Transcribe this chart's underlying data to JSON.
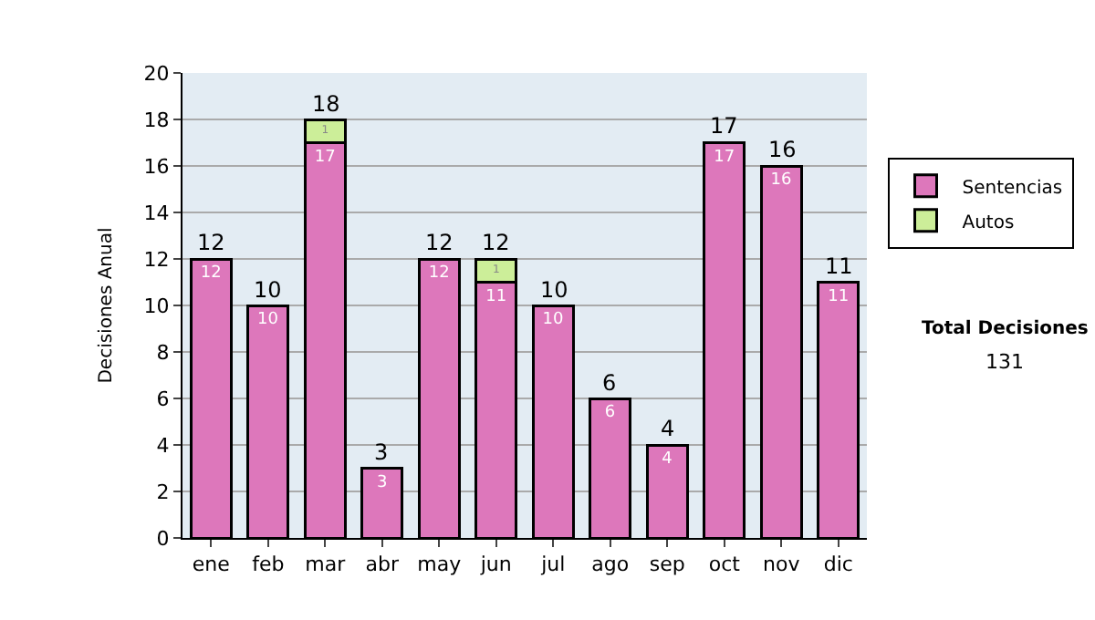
{
  "chart_data": {
    "type": "bar",
    "ylabel": "Decisiones Anual",
    "stacked": true,
    "categories": [
      "ene",
      "feb",
      "mar",
      "abr",
      "may",
      "jun",
      "jul",
      "ago",
      "sep",
      "oct",
      "nov",
      "dic"
    ],
    "series": [
      {
        "name": "Sentencias",
        "color": "#dd77bb",
        "values": [
          12,
          10,
          17,
          3,
          12,
          11,
          10,
          6,
          4,
          17,
          16,
          11
        ]
      },
      {
        "name": "Autos",
        "color": "#ccee99",
        "values": [
          null,
          null,
          1,
          null,
          null,
          1,
          null,
          null,
          null,
          null,
          null,
          null
        ]
      }
    ],
    "data_labels": true,
    "totals": [
      "12",
      "10",
      "18",
      "3",
      "12",
      "12",
      "10",
      "6",
      "4",
      "17",
      "16",
      "11"
    ],
    "ylim": [
      0,
      20
    ],
    "yticks": [
      0,
      2,
      4,
      6,
      8,
      10,
      12,
      14,
      16,
      18,
      20
    ],
    "grid": "y",
    "legend": "right",
    "annotations": [
      "Total Decisiones",
      "131"
    ]
  }
}
